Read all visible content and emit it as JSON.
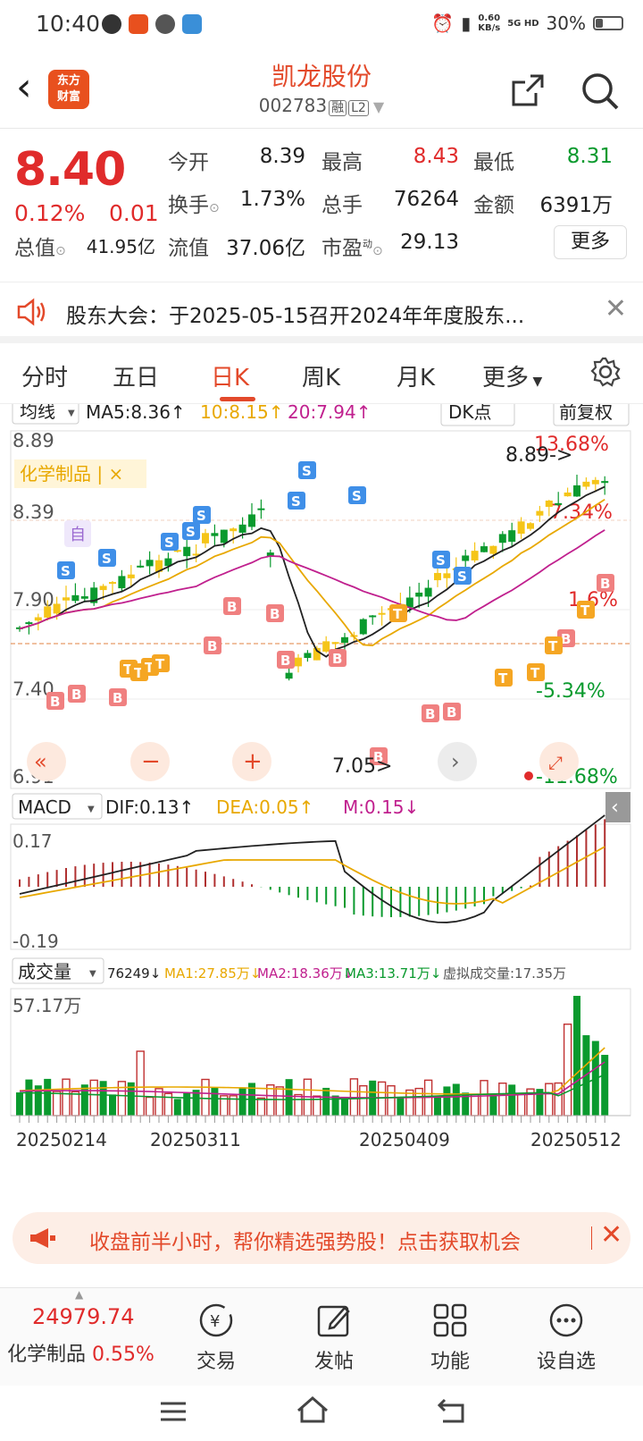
{
  "status": {
    "time": "10:40",
    "net_speed": "0.60",
    "net_unit": "KB/s",
    "net_type": "5G HD",
    "battery": "30%",
    "battery_level": 0.3
  },
  "header": {
    "brand": "东方财富",
    "name": "凯龙股份",
    "code": "002783",
    "tag1": "融",
    "tag2": "L2"
  },
  "quote": {
    "price": "8.40",
    "pct": "0.12%",
    "chg": "0.01",
    "open_label": "今开",
    "open": "8.39",
    "high_label": "最高",
    "high": "8.43",
    "low_label": "最低",
    "low": "8.31",
    "turnover_label": "换手",
    "turnover": "1.73%",
    "volume_label": "总手",
    "volume": "76264",
    "amount_label": "金额",
    "amount": "6391万",
    "mktcap_label": "总值",
    "mktcap": "41.95亿",
    "float_label": "流值",
    "float": "37.06亿",
    "pe_label": "市盈",
    "pe_sup": "动",
    "pe": "29.13",
    "more": "更多"
  },
  "notice": {
    "text": "股东大会：于2025-05-15召开2024年年度股东..."
  },
  "tabs": [
    "分时",
    "五日",
    "日K",
    "周K",
    "月K",
    "更多"
  ],
  "active_tab": "日K",
  "kline": {
    "indicator": "均线",
    "ma5": "MA5:8.36↑",
    "ma10": "10:8.15↑",
    "ma20": "20:7.94↑",
    "dk": "DK点",
    "adjust": "前复权",
    "y_labels": [
      "8.89",
      "8.39",
      "7.90",
      "7.40",
      "6.91"
    ],
    "pct_labels": [
      "13.68%",
      "7.34%",
      "1.6%",
      "-5.34%",
      "-11.68%"
    ],
    "industry_tag": "化学制品 | ×",
    "high_marker": "8.89->",
    "low_marker": "7.05>",
    "self_tag": "自",
    "signal_B": "B",
    "signal_S": "S",
    "signal_T": "T"
  },
  "macd": {
    "label": "MACD",
    "dif": "DIF:0.13↑",
    "dea": "DEA:0.05↑",
    "m": "M:0.15↓",
    "top": "0.17",
    "bottom": "-0.19"
  },
  "volume": {
    "label": "成交量",
    "v": "76249↓",
    "ma1": "MA1:27.85万↓",
    "ma2": "MA2:18.36万↓",
    "ma3": "MA3:13.71万↓",
    "virtual": "虚拟成交量:17.35万",
    "top": "57.17万",
    "dates": [
      "20250214",
      "20250311",
      "20250409",
      "20250512"
    ]
  },
  "ad": {
    "text": "收盘前半小时，帮你精选强势股！点击获取机会"
  },
  "toolbar": {
    "index_value": "24979.74",
    "index_name": "化学制品",
    "index_pct": "0.55%",
    "trade": "交易",
    "post": "发帖",
    "func": "功能",
    "watch": "设自选"
  },
  "colors": {
    "up": "#e02b2b",
    "down": "#0a9a2e",
    "accent": "#e3492a",
    "candle_up": "#f5c518"
  }
}
